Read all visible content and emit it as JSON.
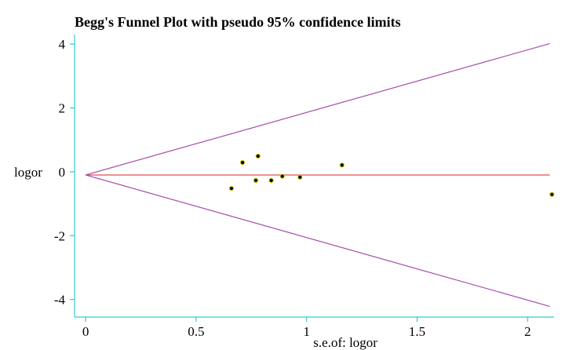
{
  "chart_data": {
    "type": "scatter",
    "title": "Begg's Funnel Plot with pseudo 95% confidence limits",
    "xlabel": "s.e.of: logor",
    "ylabel": "logor",
    "xlim": [
      -0.05,
      2.12
    ],
    "ylim": [
      -4.55,
      4.3
    ],
    "x_ticks": [
      0,
      0.5,
      1,
      1.5,
      2
    ],
    "x_tick_labels": [
      "0",
      "0.5",
      "1",
      "1.5",
      "2"
    ],
    "y_ticks": [
      4,
      2,
      0,
      -2,
      -4
    ],
    "y_tick_labels": [
      "4",
      "2",
      "0",
      "-2",
      "-4"
    ],
    "pooled_estimate": -0.1,
    "confidence_multiplier": 1.96,
    "funnel_x_max": 2.1,
    "grid": false,
    "colors": {
      "axes": "#33cccc",
      "funnel_limits": "#a64ca6",
      "pooled_line": "#e05050",
      "point_fill": "#000000",
      "point_stroke": "#c8c800"
    },
    "points": [
      {
        "x": 0.66,
        "y": -0.52
      },
      {
        "x": 0.71,
        "y": 0.29
      },
      {
        "x": 0.77,
        "y": -0.27
      },
      {
        "x": 0.78,
        "y": 0.49
      },
      {
        "x": 0.84,
        "y": -0.27
      },
      {
        "x": 0.89,
        "y": -0.14
      },
      {
        "x": 0.97,
        "y": -0.17
      },
      {
        "x": 1.16,
        "y": 0.21
      },
      {
        "x": 2.11,
        "y": -0.71
      }
    ]
  }
}
